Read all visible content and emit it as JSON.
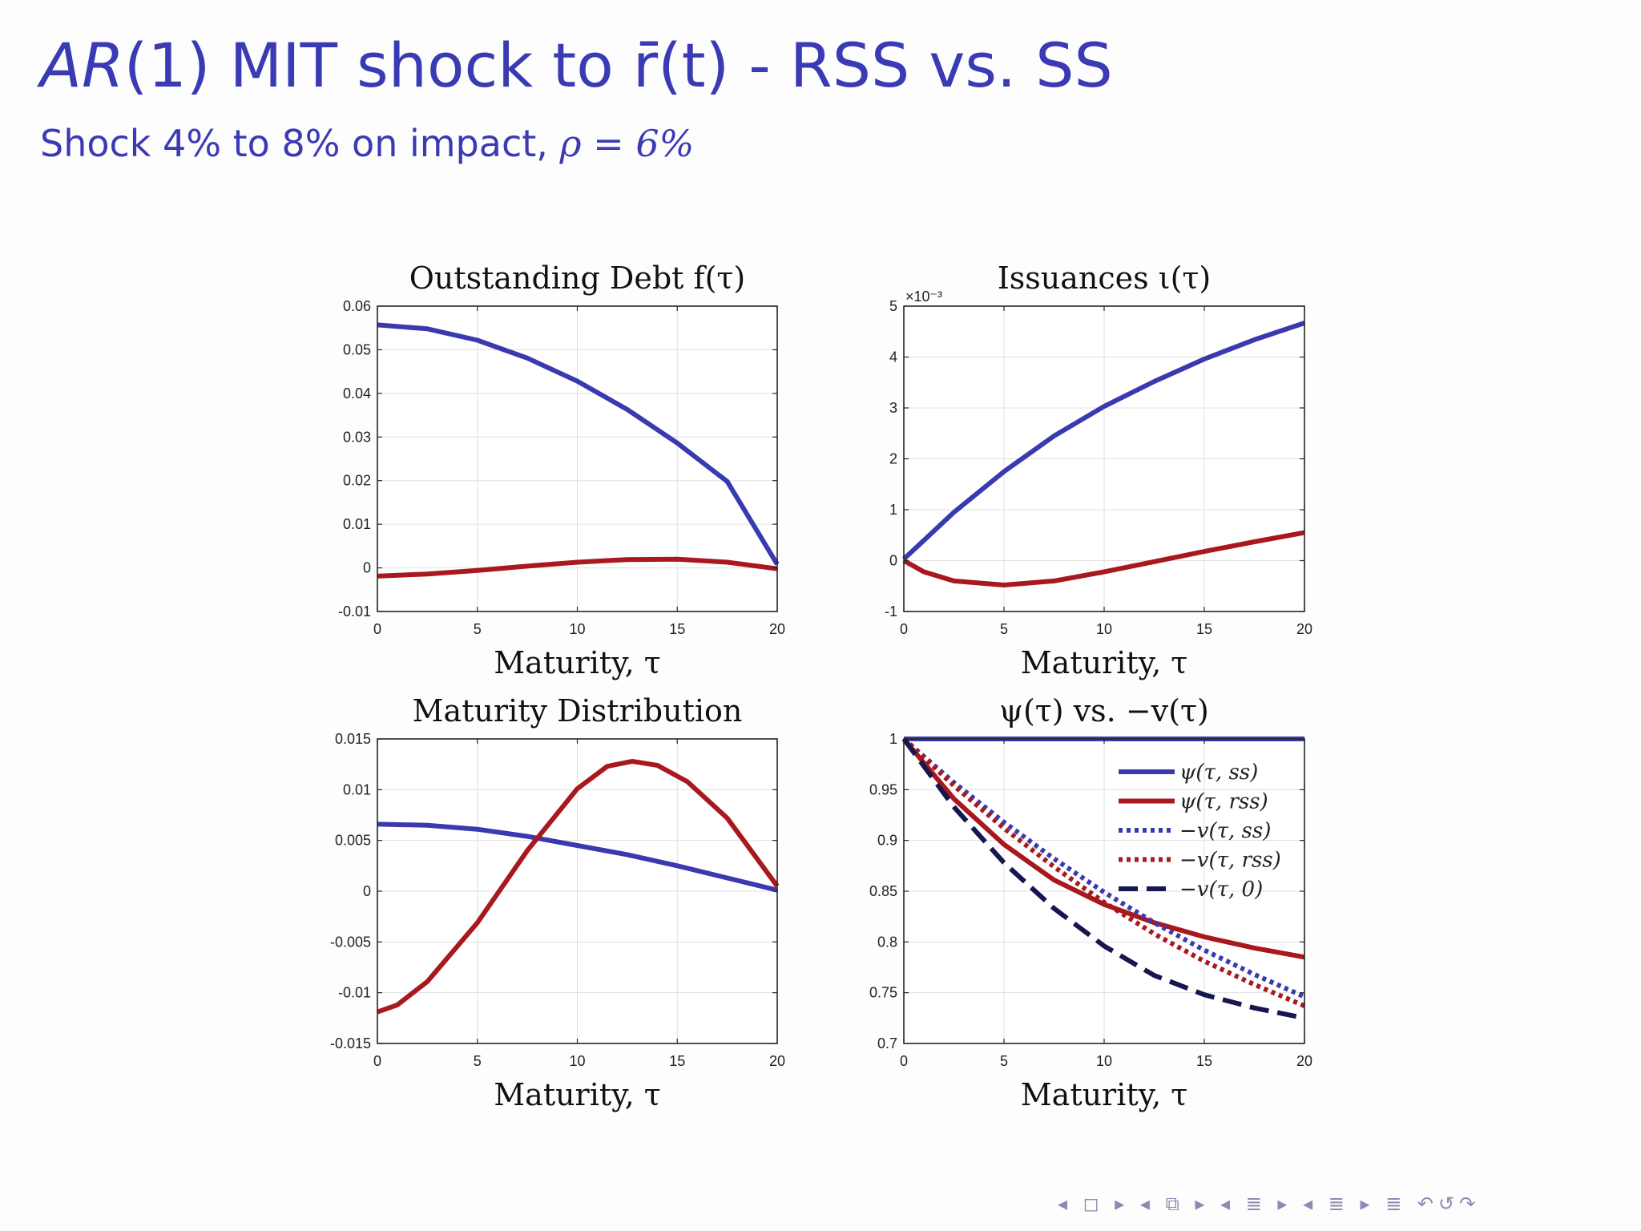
{
  "slide": {
    "title_ar": "AR",
    "title_rest": "(1) MIT shock to r̄(t) - RSS vs. SS",
    "subtitle_text": "Shock 4% to 8% on impact, ",
    "subtitle_rho": "ρ = 6%"
  },
  "colors": {
    "ss": "#3a3ab0",
    "rss": "#a8181c",
    "zero": "#161650",
    "title": "#3a3ab4"
  },
  "chart_data": [
    {
      "type": "line",
      "title": "Outstanding Debt f(τ)",
      "xlabel": "Maturity, τ",
      "xlim": [
        0,
        20
      ],
      "ylim": [
        -0.01,
        0.06
      ],
      "xticks": [
        0,
        5,
        10,
        15,
        20
      ],
      "yticks": [
        -0.01,
        0,
        0.01,
        0.02,
        0.03,
        0.04,
        0.05,
        0.06
      ],
      "ytick_labels": [
        "-0.01",
        "0",
        "0.01",
        "0.02",
        "0.03",
        "0.04",
        "0.05",
        "0.06"
      ],
      "series": [
        {
          "color_key": "ss",
          "style": "solid",
          "x": [
            0,
            2.5,
            5,
            7.5,
            10,
            12.5,
            15,
            17.5,
            20
          ],
          "y": [
            0.0557,
            0.0548,
            0.0522,
            0.0481,
            0.0428,
            0.0363,
            0.0286,
            0.0198,
            0.0008
          ]
        },
        {
          "color_key": "rss",
          "style": "solid",
          "x": [
            0,
            2.5,
            5,
            7.5,
            10,
            12.5,
            15,
            17.5,
            20
          ],
          "y": [
            -0.0019,
            -0.0014,
            -0.0006,
            0.0004,
            0.0013,
            0.0019,
            0.002,
            0.0013,
            -0.0002
          ]
        }
      ]
    },
    {
      "type": "line",
      "title": "Issuances ι(τ)",
      "xlabel": "Maturity, τ",
      "xlim": [
        0,
        20
      ],
      "ylim": [
        -1,
        5
      ],
      "yscale_label": "×10⁻³",
      "xticks": [
        0,
        5,
        10,
        15,
        20
      ],
      "yticks": [
        -1,
        0,
        1,
        2,
        3,
        4,
        5
      ],
      "ytick_labels": [
        "-1",
        "0",
        "1",
        "2",
        "3",
        "4",
        "5"
      ],
      "series": [
        {
          "color_key": "ss",
          "style": "solid",
          "x": [
            0,
            2.5,
            5,
            7.5,
            10,
            12.5,
            15,
            17.5,
            20
          ],
          "y": [
            0.03,
            0.95,
            1.75,
            2.45,
            3.03,
            3.52,
            3.96,
            4.34,
            4.67
          ]
        },
        {
          "color_key": "rss",
          "style": "solid",
          "x": [
            0,
            1,
            2.5,
            5,
            7.5,
            10,
            12.5,
            15,
            17.5,
            20
          ],
          "y": [
            0.0,
            -0.22,
            -0.4,
            -0.48,
            -0.4,
            -0.22,
            -0.02,
            0.18,
            0.37,
            0.55
          ]
        }
      ]
    },
    {
      "type": "line",
      "title": "Maturity Distribution",
      "xlabel": "Maturity, τ",
      "xlim": [
        0,
        20
      ],
      "ylim": [
        -0.015,
        0.015
      ],
      "xticks": [
        0,
        5,
        10,
        15,
        20
      ],
      "yticks": [
        -0.015,
        -0.01,
        -0.005,
        0,
        0.005,
        0.01,
        0.015
      ],
      "ytick_labels": [
        "-0.015",
        "-0.01",
        "-0.005",
        "0",
        "0.005",
        "0.01",
        "0.015"
      ],
      "series": [
        {
          "color_key": "ss",
          "style": "solid",
          "x": [
            0,
            2.5,
            5,
            7.5,
            10,
            12.5,
            15,
            17.5,
            20
          ],
          "y": [
            0.0066,
            0.0065,
            0.0061,
            0.0054,
            0.0045,
            0.0036,
            0.0025,
            0.0013,
            0.0001
          ]
        },
        {
          "color_key": "rss",
          "style": "solid",
          "x": [
            0,
            1,
            2.5,
            5,
            7.5,
            10,
            11.5,
            12.75,
            14,
            15.5,
            17.5,
            20
          ],
          "y": [
            -0.0119,
            -0.0112,
            -0.0089,
            -0.0031,
            0.004,
            0.0101,
            0.0123,
            0.0128,
            0.0124,
            0.0108,
            0.0072,
            0.0005
          ]
        }
      ]
    },
    {
      "type": "line",
      "title": "ψ(τ) vs. −v(τ)",
      "xlabel": "Maturity, τ",
      "xlim": [
        0,
        20
      ],
      "ylim": [
        0.7,
        1
      ],
      "xticks": [
        0,
        5,
        10,
        15,
        20
      ],
      "yticks": [
        0.7,
        0.75,
        0.8,
        0.85,
        0.9,
        0.95,
        1
      ],
      "ytick_labels": [
        "0.7",
        "0.75",
        "0.8",
        "0.85",
        "0.9",
        "0.95",
        "1"
      ],
      "legend": "top-right",
      "series": [
        {
          "name": "ψ(τ, ss)",
          "color_key": "ss",
          "style": "solid",
          "x": [
            0,
            5,
            10,
            15,
            20
          ],
          "y": [
            1,
            1,
            1,
            1,
            1
          ]
        },
        {
          "name": "ψ(τ, rss)",
          "color_key": "rss",
          "style": "solid",
          "x": [
            0,
            2.5,
            5,
            7.5,
            10,
            12.5,
            15,
            17.5,
            20
          ],
          "y": [
            1.0,
            0.941,
            0.896,
            0.861,
            0.837,
            0.819,
            0.805,
            0.794,
            0.785
          ]
        },
        {
          "name": "−v(τ, ss)",
          "color_key": "ss",
          "style": "dot",
          "x": [
            0,
            2.5,
            5,
            7.5,
            10,
            12.5,
            15,
            17.5,
            20
          ],
          "y": [
            1.0,
            0.957,
            0.918,
            0.882,
            0.849,
            0.819,
            0.792,
            0.768,
            0.746
          ]
        },
        {
          "name": "−v(τ, rss)",
          "color_key": "rss",
          "style": "dot",
          "x": [
            0,
            2.5,
            5,
            7.5,
            10,
            12.5,
            15,
            17.5,
            20
          ],
          "y": [
            1.0,
            0.954,
            0.912,
            0.874,
            0.839,
            0.808,
            0.781,
            0.758,
            0.737
          ]
        },
        {
          "name": "−v(τ, 0)",
          "color_key": "zero",
          "style": "dash",
          "x": [
            0,
            2.5,
            5,
            7.5,
            10,
            12.5,
            15,
            17.5,
            20
          ],
          "y": [
            1.0,
            0.933,
            0.878,
            0.833,
            0.796,
            0.767,
            0.748,
            0.735,
            0.725
          ]
        }
      ]
    }
  ],
  "navigation": {
    "symbols": "◂ ◻ ▸ ◂ ⧉ ▸ ◂ ≣ ▸ ◂ ≣ ▸    ≣    ↶↺↷"
  }
}
